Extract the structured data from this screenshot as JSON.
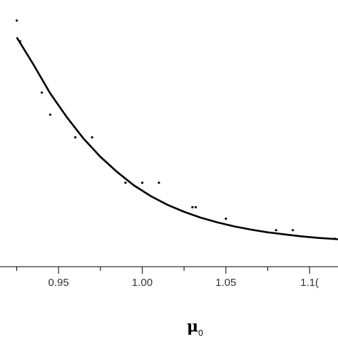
{
  "chart_data": {
    "type": "scatter",
    "title": "",
    "xlabel": "μ",
    "xlabel_sub": "0",
    "ylabel": "",
    "xlim": [
      0.915,
      1.117
    ],
    "ylim": [
      0,
      1
    ],
    "grid": false,
    "x_ticks": [
      {
        "value": 0.95,
        "label": "0.95"
      },
      {
        "value": 1.0,
        "label": "1.00"
      },
      {
        "value": 1.05,
        "label": "1.05"
      },
      {
        "value": 1.1,
        "label": "1.1("
      }
    ],
    "x_minor_ticks": [
      0.925,
      0.975,
      1.025,
      1.075
    ],
    "series": [
      {
        "kind": "points",
        "points": [
          {
            "x": 0.925,
            "y": 0.923
          },
          {
            "x": 0.927,
            "y": 0.845
          },
          {
            "x": 0.94,
            "y": 0.653
          },
          {
            "x": 0.945,
            "y": 0.57
          },
          {
            "x": 0.96,
            "y": 0.485
          },
          {
            "x": 0.97,
            "y": 0.485
          },
          {
            "x": 0.99,
            "y": 0.315
          },
          {
            "x": 1.0,
            "y": 0.315
          },
          {
            "x": 1.01,
            "y": 0.315
          },
          {
            "x": 1.03,
            "y": 0.223
          },
          {
            "x": 1.032,
            "y": 0.223
          },
          {
            "x": 1.05,
            "y": 0.18
          },
          {
            "x": 1.08,
            "y": 0.137
          },
          {
            "x": 1.09,
            "y": 0.137
          },
          {
            "x": 1.115,
            "y": 0.105
          }
        ]
      },
      {
        "kind": "curve",
        "points": [
          {
            "x": 0.925,
            "y": 0.86
          },
          {
            "x": 0.935,
            "y": 0.758
          },
          {
            "x": 0.945,
            "y": 0.65
          },
          {
            "x": 0.955,
            "y": 0.56
          },
          {
            "x": 0.965,
            "y": 0.48
          },
          {
            "x": 0.975,
            "y": 0.412
          },
          {
            "x": 0.985,
            "y": 0.355
          },
          {
            "x": 0.995,
            "y": 0.305
          },
          {
            "x": 1.005,
            "y": 0.265
          },
          {
            "x": 1.015,
            "y": 0.232
          },
          {
            "x": 1.025,
            "y": 0.206
          },
          {
            "x": 1.035,
            "y": 0.184
          },
          {
            "x": 1.045,
            "y": 0.166
          },
          {
            "x": 1.055,
            "y": 0.151
          },
          {
            "x": 1.065,
            "y": 0.139
          },
          {
            "x": 1.075,
            "y": 0.129
          },
          {
            "x": 1.085,
            "y": 0.121
          },
          {
            "x": 1.095,
            "y": 0.114
          },
          {
            "x": 1.105,
            "y": 0.108
          },
          {
            "x": 1.117,
            "y": 0.103
          }
        ]
      }
    ]
  }
}
